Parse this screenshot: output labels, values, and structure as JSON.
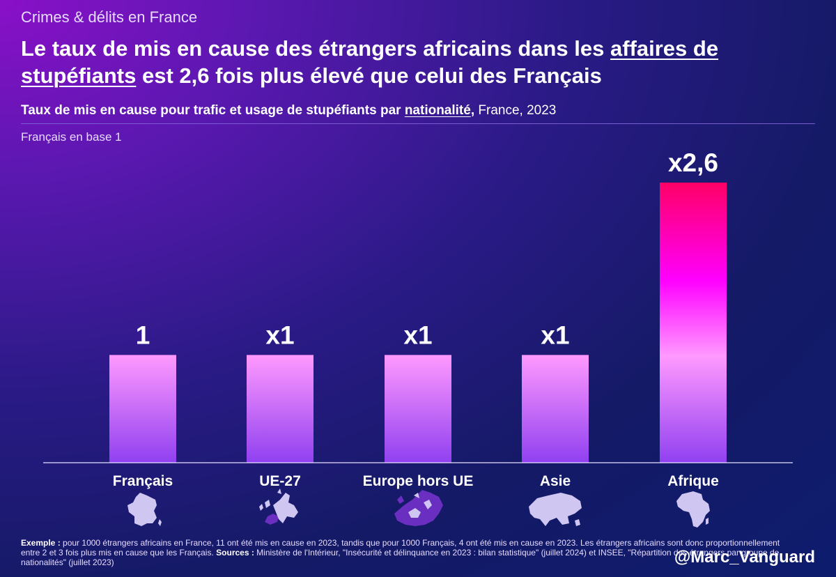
{
  "header": {
    "kicker": "Crimes & délits en France",
    "headline_part1": "Le taux de mis en cause des étrangers africains dans les ",
    "headline_underline1": "affaires de stupéfiants",
    "headline_part2": " est 2,6 fois plus élevé que celui des Français",
    "subtitle_part1": "Taux de mis en cause pour trafic et usage de stupéfiants par ",
    "subtitle_underline": "nationalité",
    "subtitle_part2": ",",
    "subtitle_suffix": " France, 2023",
    "note": "Français en base 1"
  },
  "chart_data": {
    "type": "bar",
    "title": "Taux de mis en cause pour trafic et usage de stupéfiants par nationalité, France, 2023",
    "xlabel": "",
    "ylabel": "Français en base 1",
    "categories": [
      "Français",
      "UE-27",
      "Europe hors UE",
      "Asie",
      "Afrique"
    ],
    "values": [
      1,
      1,
      1,
      1,
      2.6
    ],
    "data_labels": [
      "1",
      "x1",
      "x1",
      "x1",
      "x2,6"
    ],
    "ylim": [
      0,
      2.6
    ],
    "grid": false,
    "icons": [
      "france-map-icon",
      "eu-map-icon",
      "europe-map-icon",
      "asia-map-icon",
      "africa-map-icon"
    ]
  },
  "colors": {
    "bar_top": "#ff99ff",
    "bar_bottom": "#9040f0",
    "highlight_top": "#ff0066",
    "highlight_mid": "#ff00ff",
    "map_fill": "#cfc6f2",
    "map_highlight": "#6a2ec0"
  },
  "footer": {
    "example_label": "Exemple :",
    "example_text": " pour 1000 étrangers africains en France, 11 ont été mis en cause en 2023, tandis que pour 1000 Français, 4 ont été mis en cause en 2023. Les étrangers africains sont donc proportionnellement entre 2 et 3 fois plus mis en cause que les Français. ",
    "sources_label": "Sources :",
    "sources_text": " Ministère de l'Intérieur, \"Insécurité et délinquance en 2023 : bilan statistique\" (juillet 2024) et INSEE, \"Répartition des étrangers par groupe de nationalités\" (juillet 2023)"
  },
  "handle": "@Marc_Vanguard"
}
